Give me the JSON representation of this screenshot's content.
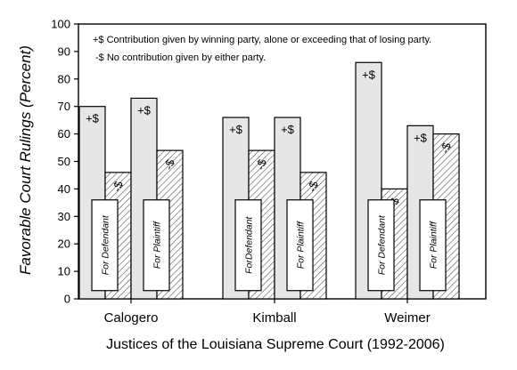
{
  "chart_data": {
    "type": "bar",
    "categories": [
      "Calogero",
      "Kimball",
      "Weimer"
    ],
    "groups": [
      "For Defendant",
      "For Plaintiff"
    ],
    "series": [
      {
        "name": "+$ Contribution given by winning party, alone or exceeding that of losing party.",
        "mark": "+$",
        "fill": "solid",
        "color": "#e6e6e6"
      },
      {
        "name": "-$ No contribution given by either party.",
        "mark": "-$",
        "fill": "hatched",
        "color": "#ffffff"
      }
    ],
    "values": {
      "Calogero": {
        "For Defendant": [
          70,
          46
        ],
        "For Plaintiff": [
          73,
          54
        ]
      },
      "Kimball": {
        "For Defendant": [
          66,
          54
        ],
        "For Plaintiff": [
          66,
          46
        ]
      },
      "Weimer": {
        "For Defendant": [
          86,
          40
        ],
        "For Plaintiff": [
          63,
          60
        ]
      }
    },
    "group_labels": {
      "Calogero": [
        "For  Defendant",
        "For  Plaintiff"
      ],
      "Kimball": [
        "ForDefendant",
        "For Plaintiff"
      ],
      "Weimer": [
        "For  Defendant",
        "For Plaintiff"
      ]
    },
    "title": "",
    "xlabel": "Justices of the Louisiana Supreme Court (1992-2006)",
    "ylabel": "Favorable Court Rulings (Percent)",
    "ylim": [
      0,
      100
    ],
    "yticks": [
      0,
      10,
      20,
      30,
      40,
      50,
      60,
      70,
      80,
      90,
      100
    ],
    "legend_placement": "top-right",
    "grid": false
  }
}
